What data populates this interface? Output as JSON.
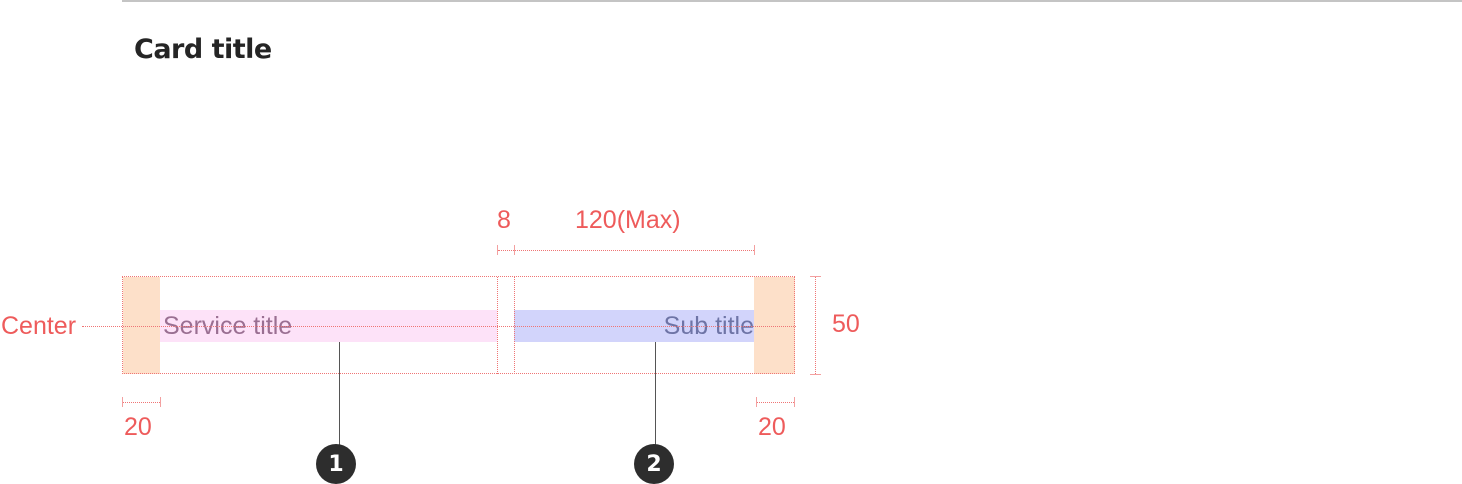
{
  "header": {
    "title": "Card title"
  },
  "diagram": {
    "service_title": "Service title",
    "sub_title": "Sub title",
    "labels": {
      "center": "Center",
      "gap": "8",
      "sub_max_width": "120(Max)",
      "height": "50",
      "left_padding": "20",
      "right_padding": "20"
    },
    "markers": [
      "1",
      "2"
    ]
  },
  "colors": {
    "padding_fill": "#fde0c9",
    "service_fill": "#fde2f8",
    "sub_fill": "#d2d4fb",
    "dimension_red": "#ee5b5b",
    "marker_fill": "#2d2d2d"
  }
}
